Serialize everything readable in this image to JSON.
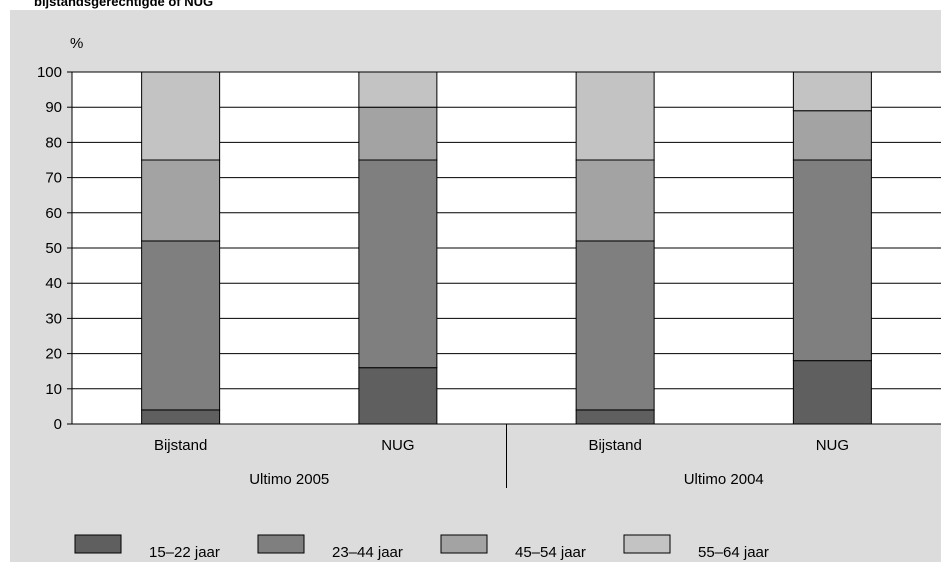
{
  "title": "bijstandsgerechtigde of NUG",
  "chart_data": {
    "type": "bar",
    "stacked": true,
    "ylabel": "%",
    "ylim": [
      0,
      100
    ],
    "yticks": [
      0,
      10,
      20,
      30,
      40,
      50,
      60,
      70,
      80,
      90,
      100
    ],
    "grid": true,
    "legend_position": "bottom",
    "groups": [
      "Ultimo 2005",
      "Ultimo 2004"
    ],
    "categories": [
      "Bijstand",
      "NUG",
      "Bijstand",
      "NUG"
    ],
    "category_group": [
      0,
      0,
      1,
      1
    ],
    "series": [
      {
        "name": "15–22 jaar",
        "color": "#5f5f5f",
        "values": [
          4,
          16,
          4,
          18
        ]
      },
      {
        "name": "23–44 jaar",
        "color": "#7f7f7f",
        "values": [
          48,
          59,
          48,
          57
        ]
      },
      {
        "name": "45–54 jaar",
        "color": "#a3a3a3",
        "values": [
          23,
          15,
          23,
          14
        ]
      },
      {
        "name": "55–64 jaar",
        "color": "#c3c3c3",
        "values": [
          25,
          10,
          25,
          11
        ]
      }
    ]
  }
}
